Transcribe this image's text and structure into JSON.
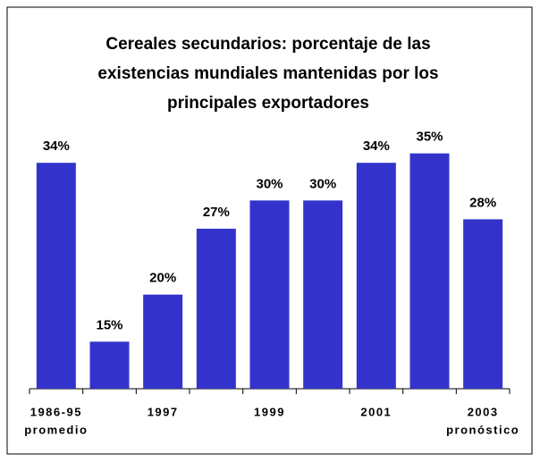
{
  "chart_data": {
    "type": "bar",
    "title": [
      "Cereales secundarios: porcentaje de las",
      "existencias mundiales mantenidas por los",
      "principales exportadores"
    ],
    "categories": [
      "1986-95",
      null,
      "1997",
      null,
      "1999",
      null,
      "2001",
      null,
      "2003"
    ],
    "category_sublabels": [
      "promedio",
      null,
      null,
      null,
      null,
      null,
      null,
      null,
      "pronóstico"
    ],
    "values": [
      34,
      15,
      20,
      27,
      30,
      30,
      34,
      35,
      28
    ],
    "value_labels": [
      "34%",
      "15%",
      "20%",
      "27%",
      "30%",
      "30%",
      "34%",
      "35%",
      "28%"
    ],
    "color": "#3333cc",
    "ylim": [
      10,
      40
    ]
  }
}
